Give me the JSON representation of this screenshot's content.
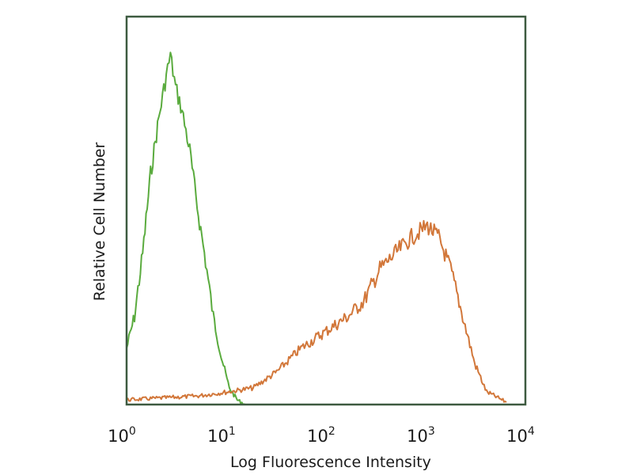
{
  "chart_data": {
    "type": "line",
    "title": "",
    "xlabel": "Log Fluorescence Intensity",
    "ylabel": "Relative Cell Number",
    "x_scale": "log",
    "xlim": [
      1,
      10000
    ],
    "ylim": [
      0,
      100
    ],
    "grid": false,
    "x_ticks": [
      {
        "base": "10",
        "exp": "0"
      },
      {
        "base": "10",
        "exp": "1"
      },
      {
        "base": "10",
        "exp": "2"
      },
      {
        "base": "10",
        "exp": "3"
      },
      {
        "base": "10",
        "exp": "4"
      }
    ],
    "series": [
      {
        "color": "#5aab3e",
        "x": [
          1,
          1.2,
          1.45,
          1.74,
          2.1,
          2.5,
          2.75,
          3.1,
          3.6,
          4.3,
          5.1,
          6.2,
          7.4,
          8.9,
          10.7,
          12.9,
          15.5
        ],
        "y": [
          14.5,
          22.7,
          39.0,
          59.4,
          73.7,
          84.9,
          90.0,
          81.8,
          75.7,
          65.5,
          51.2,
          36.9,
          22.7,
          12.4,
          4.3,
          1.2,
          0
        ]
      },
      {
        "color": "#d2773a",
        "x": [
          1,
          5.1,
          10.7,
          18.6,
          32,
          56,
          96,
          166,
          240,
          347,
          500,
          720,
          1040,
          1350,
          1780,
          2350,
          3100,
          4070,
          6450
        ],
        "y": [
          1.2,
          2.2,
          3.3,
          4.3,
          8.4,
          14.5,
          18.6,
          22.7,
          26.7,
          34.9,
          39.0,
          43.1,
          46.1,
          43.1,
          34.9,
          22.7,
          10.6,
          3.3,
          0.6
        ]
      }
    ]
  }
}
